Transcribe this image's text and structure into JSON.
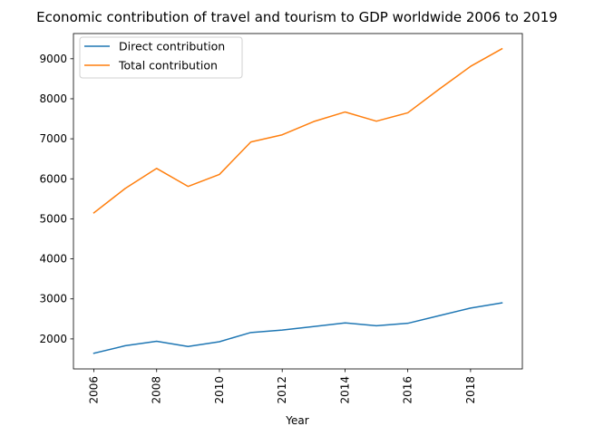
{
  "chart_data": {
    "type": "line",
    "title": "Economic contribution of travel and tourism to GDP worldwide 2006 to 2019",
    "xlabel": "Year",
    "ylabel": "",
    "x": [
      2006,
      2007,
      2008,
      2009,
      2010,
      2011,
      2012,
      2013,
      2014,
      2015,
      2016,
      2017,
      2018,
      2019
    ],
    "xticks": [
      2006,
      2008,
      2010,
      2012,
      2014,
      2016,
      2018
    ],
    "yticks": [
      2000,
      3000,
      4000,
      5000,
      6000,
      7000,
      8000,
      9000
    ],
    "xlim": [
      2005.35,
      2019.65
    ],
    "ylim": [
      1250,
      9630
    ],
    "grid": false,
    "legend_position": "top-left",
    "series": [
      {
        "name": "Direct contribution",
        "color": "#1f77b4",
        "values": [
          1640,
          1830,
          1940,
          1810,
          1930,
          2160,
          2220,
          2310,
          2400,
          2330,
          2390,
          2580,
          2770,
          2900
        ]
      },
      {
        "name": "Total contribution",
        "color": "#ff7f0e",
        "values": [
          5150,
          5760,
          6260,
          5810,
          6110,
          6920,
          7100,
          7430,
          7670,
          7440,
          7650,
          8240,
          8810,
          9250
        ]
      }
    ]
  }
}
